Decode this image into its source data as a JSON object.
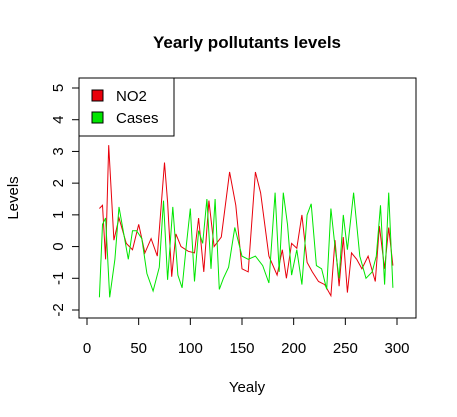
{
  "chart_data": {
    "type": "line",
    "title": "Yearly pollutants levels",
    "xlabel": "Yealy",
    "ylabel": "Levels",
    "xlim": [
      0,
      300
    ],
    "ylim": [
      -2,
      5
    ],
    "x_ticks": [
      "0",
      "50",
      "100",
      "150",
      "200",
      "250",
      "300"
    ],
    "y_ticks": [
      "-2",
      "-1",
      "0",
      "1",
      "2",
      "3",
      "4",
      "5"
    ],
    "legend_position": "top-left",
    "grid": false,
    "series": [
      {
        "name": "NO2",
        "color": "#e8000b",
        "x": [
          12,
          15,
          18,
          21,
          26,
          31,
          38,
          44,
          50,
          56,
          62,
          68,
          75,
          78,
          82,
          86,
          91,
          98,
          104,
          108,
          113,
          118,
          123,
          130,
          138,
          144,
          150,
          156,
          163,
          168,
          176,
          184,
          189,
          193,
          198,
          203,
          208,
          213,
          218,
          224,
          230,
          236,
          240,
          244,
          248,
          252,
          256,
          261,
          266,
          272,
          279,
          283,
          288,
          292,
          296
        ],
        "y": [
          1.2,
          1.3,
          -0.4,
          3.2,
          0.2,
          0.9,
          0.1,
          -0.1,
          0.7,
          -0.2,
          0.25,
          -0.3,
          2.65,
          1.4,
          -0.95,
          0.4,
          0.0,
          -0.15,
          -0.2,
          0.9,
          -0.8,
          1.45,
          0.0,
          0.3,
          2.35,
          1.3,
          -0.7,
          -0.8,
          2.35,
          1.7,
          -0.3,
          -0.9,
          -0.1,
          -1.0,
          0.1,
          -0.05,
          1.0,
          -0.5,
          -0.8,
          -1.1,
          -1.2,
          -1.55,
          0.2,
          -1.25,
          0.3,
          -1.45,
          -0.2,
          -0.4,
          -0.7,
          -0.3,
          -1.1,
          0.65,
          -0.7,
          0.6,
          -0.6
        ]
      },
      {
        "name": "Cases",
        "color": "#00e600",
        "x": [
          12,
          15,
          18,
          22,
          27,
          31,
          35,
          40,
          44,
          48,
          53,
          58,
          64,
          70,
          74,
          78,
          83,
          88,
          92,
          96,
          100,
          104,
          108,
          112,
          116,
          120,
          124,
          128,
          132,
          137,
          143,
          150,
          156,
          163,
          170,
          176,
          182,
          186,
          190,
          194,
          198,
          203,
          208,
          213,
          217,
          222,
          227,
          232,
          236,
          240,
          244,
          248,
          252,
          258,
          264,
          270,
          276,
          280,
          284,
          288,
          292,
          296
        ],
        "y": [
          -1.6,
          0.7,
          0.9,
          -1.6,
          -0.4,
          1.25,
          0.5,
          -0.4,
          0.5,
          0.5,
          0.25,
          -0.85,
          -1.4,
          -0.65,
          1.45,
          -1.05,
          1.25,
          -0.9,
          -1.3,
          0.0,
          1.2,
          -1.1,
          0.5,
          0.1,
          1.5,
          -0.7,
          1.5,
          -1.35,
          -1.0,
          -0.65,
          0.6,
          -0.3,
          -0.4,
          -0.3,
          -0.6,
          -1.15,
          1.7,
          -0.8,
          1.7,
          0.7,
          -0.9,
          -0.1,
          -1.2,
          1.0,
          1.35,
          -0.6,
          -0.7,
          -1.35,
          1.2,
          0.0,
          -1.0,
          1.0,
          -0.1,
          1.7,
          -0.3,
          -1.0,
          -0.8,
          -0.3,
          1.3,
          -1.2,
          1.7,
          -1.3
        ]
      }
    ]
  }
}
